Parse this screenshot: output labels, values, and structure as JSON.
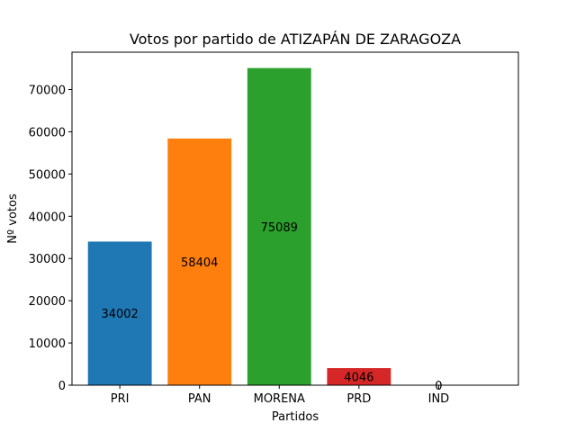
{
  "chart_data": {
    "type": "bar",
    "title": "Votos por partido de ATIZAPÁN DE ZARAGOZA",
    "xlabel": "Partidos",
    "ylabel": "Nº votos",
    "categories": [
      "PRI",
      "PAN",
      "MORENA",
      "PRD",
      "IND"
    ],
    "values": [
      34002,
      58404,
      75089,
      4046,
      0
    ],
    "data_labels": [
      "34002",
      "58404",
      "75089",
      "4046",
      "0"
    ],
    "colors": [
      "#1f77b4",
      "#ff7f0e",
      "#2ca02c",
      "#d62728",
      "#9467bd"
    ],
    "ylim": [
      0,
      78844
    ],
    "yticks": [
      0,
      10000,
      20000,
      30000,
      40000,
      50000,
      60000,
      70000
    ],
    "ytick_labels": [
      "0",
      "10000",
      "20000",
      "30000",
      "40000",
      "50000",
      "60000",
      "70000"
    ],
    "grid": false,
    "legend": "none"
  }
}
